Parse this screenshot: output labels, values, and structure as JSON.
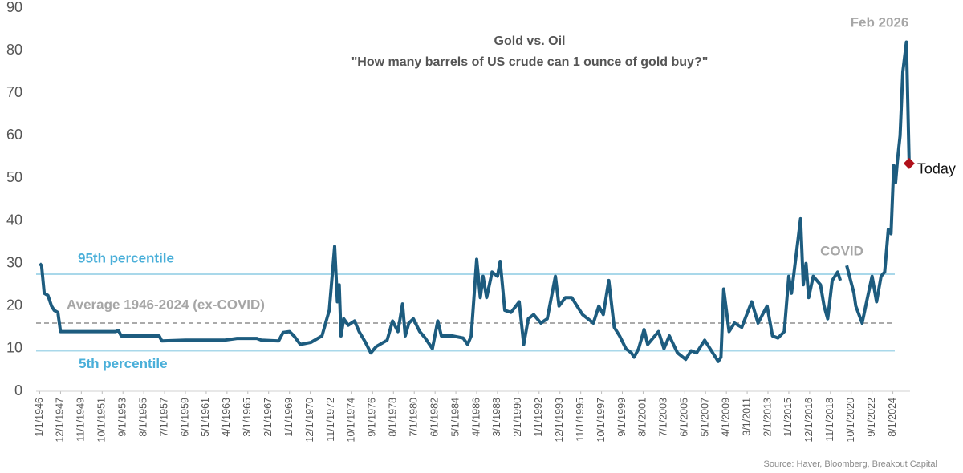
{
  "chart_data": {
    "type": "line",
    "title": "Gold vs. Oil",
    "subtitle": "\"How many barrels of US crude can 1 ounce of gold buy?\"",
    "source": "Source: Haver, Bloomberg, Breakout Capital",
    "ylim": [
      0,
      90
    ],
    "yticks": [
      0,
      10,
      20,
      30,
      40,
      50,
      60,
      70,
      80,
      90
    ],
    "xlim": [
      "9/1/1945",
      "3/1/2026"
    ],
    "xticks": [
      "1/1/1946",
      "12/1/1947",
      "11/1/1949",
      "10/1/1951",
      "9/1/1953",
      "8/1/1955",
      "7/1/1957",
      "6/1/1959",
      "5/1/1961",
      "4/1/1963",
      "3/1/1965",
      "2/1/1967",
      "1/1/1969",
      "12/1/1970",
      "11/1/1972",
      "10/1/1974",
      "9/1/1976",
      "8/1/1978",
      "7/1/1980",
      "6/1/1982",
      "5/1/1984",
      "4/1/1986",
      "3/1/1988",
      "2/1/1990",
      "1/1/1992",
      "12/1/1993",
      "11/1/1995",
      "10/1/1997",
      "9/1/1999",
      "8/1/2001",
      "7/1/2003",
      "6/1/2005",
      "5/1/2007",
      "4/1/2009",
      "3/1/2011",
      "2/1/2013",
      "1/1/2015",
      "12/1/2016",
      "11/1/2018",
      "10/1/2020",
      "9/1/2022",
      "8/1/2024"
    ],
    "x": [
      "1/1/1946",
      "3/1/1946",
      "6/1/1946",
      "10/1/1946",
      "2/1/1947",
      "5/1/1947",
      "9/1/1947",
      "12/1/1947",
      "1/1/1953",
      "4/1/1953",
      "7/1/1953",
      "1/1/1957",
      "4/1/1957",
      "6/1/1959",
      "1/1/1963",
      "3/1/1964",
      "1/1/1966",
      "6/1/1966",
      "1/1/1968",
      "6/1/1968",
      "1/1/1969",
      "6/1/1969",
      "1/1/1970",
      "1/1/1971",
      "1/1/1972",
      "9/1/1972",
      "3/1/1973",
      "6/1/1973",
      "8/1/1973",
      "10/1/1973",
      "1/1/1974",
      "6/1/1974",
      "1/1/1975",
      "6/1/1975",
      "1/1/1976",
      "7/1/1976",
      "1/1/1977",
      "1/1/1978",
      "7/1/1978",
      "1/1/1979",
      "6/1/1979",
      "9/1/1979",
      "1/1/1980",
      "6/1/1980",
      "1/1/1981",
      "7/1/1981",
      "3/1/1982",
      "9/1/1982",
      "1/1/1983",
      "1/1/1984",
      "1/1/1985",
      "6/1/1985",
      "10/1/1985",
      "4/1/1986",
      "8/1/1986",
      "11/1/1986",
      "3/1/1987",
      "9/1/1987",
      "3/1/1988",
      "6/1/1988",
      "11/1/1988",
      "6/1/1989",
      "3/1/1990",
      "8/1/1990",
      "1/1/1991",
      "7/1/1991",
      "3/1/1992",
      "10/1/1992",
      "7/1/1993",
      "11/1/1993",
      "6/1/1994",
      "1/1/1995",
      "7/1/1995",
      "1/1/1996",
      "1/1/1997",
      "7/1/1997",
      "12/1/1997",
      "6/1/1998",
      "12/1/1998",
      "6/1/1999",
      "1/1/2000",
      "7/1/2000",
      "10/1/2000",
      "3/1/2001",
      "9/1/2001",
      "1/1/2002",
      "7/1/2002",
      "1/1/2003",
      "7/1/2003",
      "1/1/2004",
      "10/1/2004",
      "7/1/2005",
      "1/1/2006",
      "7/1/2006",
      "4/1/2007",
      "1/1/2008",
      "7/1/2008",
      "10/1/2008",
      "1/1/2009",
      "7/1/2009",
      "1/1/2010",
      "9/1/2010",
      "8/1/2011",
      "3/1/2012",
      "8/1/2012",
      "1/1/2013",
      "7/1/2013",
      "1/1/2014",
      "8/1/2014",
      "1/1/2015",
      "4/1/2015",
      "2/1/2016",
      "5/1/2016",
      "8/1/2016",
      "11/1/2016",
      "4/1/2017",
      "12/1/2017",
      "4/1/2018",
      "8/1/2018",
      "1/1/2019",
      "7/1/2019",
      "10/1/2019",
      "2/1/2020",
      "5/1/2020",
      "1/1/2021",
      "3/1/2021",
      "10/1/2021",
      "4/1/2022",
      "9/1/2022",
      "2/1/2023",
      "7/1/2023",
      "11/1/2023",
      "3/1/2024",
      "6/1/2024",
      "9/1/2024",
      "11/1/2024",
      "1/1/2025",
      "4/1/2025",
      "7/1/2025",
      "11/1/2025",
      "2/1/2026"
    ],
    "series": [
      {
        "color": "#1d5c7f",
        "values": [
          30,
          29.5,
          23,
          22.5,
          20,
          19,
          18.5,
          14,
          14,
          14.3,
          13,
          13,
          11.8,
          12,
          12,
          12.4,
          12.4,
          12,
          11.8,
          13.8,
          14,
          13,
          11,
          11.5,
          13,
          19,
          34,
          21,
          25,
          13,
          17,
          15.5,
          16.5,
          14,
          11.5,
          9,
          10.5,
          12,
          16.5,
          14,
          20.5,
          13,
          16,
          17,
          14,
          12.5,
          10,
          16.5,
          13,
          13,
          12.5,
          11,
          13,
          31,
          22,
          27,
          22,
          28,
          27,
          30.5,
          19,
          18.5,
          21,
          11,
          17,
          18,
          16,
          17,
          27,
          20,
          22,
          22,
          20,
          18,
          16,
          20,
          18,
          26,
          15,
          13,
          10,
          9,
          8,
          10,
          14.5,
          11,
          12.5,
          14,
          10,
          13,
          9,
          7.5,
          9.5,
          9,
          12,
          9,
          7,
          8,
          24,
          14,
          16,
          15,
          21,
          16,
          18,
          20,
          13,
          12.5,
          14,
          27,
          23,
          40.5,
          25,
          30,
          22,
          27,
          25,
          20,
          17,
          26,
          28,
          26,
          null,
          29.5,
          23,
          20,
          16,
          22,
          27,
          21,
          27,
          28,
          38,
          37,
          53,
          49,
          54,
          60,
          75,
          82,
          53.5
        ]
      }
    ],
    "reference_lines": [
      {
        "label": "95th percentile",
        "value": 27.5,
        "color": "#a9d8ea",
        "label_color": "#4aafd9",
        "dashed": false
      },
      {
        "label": "Average 1946-2024 (ex-COVID)",
        "value": 16,
        "color": "#aaaaaa",
        "label_color": "#a6a6a6",
        "dashed": true
      },
      {
        "label": "5th percentile",
        "value": 9.5,
        "color": "#a9d8ea",
        "label_color": "#4aafd9",
        "dashed": false
      }
    ],
    "annotations": [
      {
        "text": "COVID"
      },
      {
        "text": "Feb 2026"
      }
    ],
    "today": {
      "label": "Today",
      "x": "2/1/2026",
      "value": 53.5,
      "color": "#b0101a"
    }
  }
}
